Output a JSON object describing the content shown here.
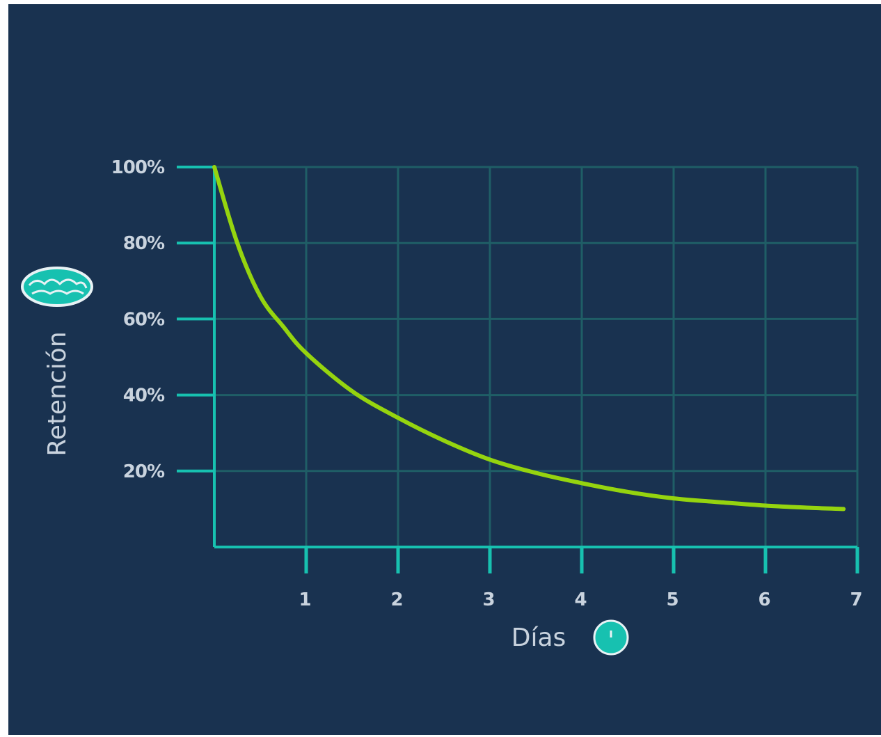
{
  "colors": {
    "background": "#193250",
    "axis": "#17c1b0",
    "grid": "#1f5e66",
    "curve": "#95d40f",
    "text": "#c9d3de"
  },
  "chart_data": {
    "type": "line",
    "title": "",
    "xlabel": "Días",
    "ylabel": "Retención",
    "xlim": [
      0,
      7
    ],
    "ylim": [
      0,
      100
    ],
    "x_ticks": [
      1,
      2,
      3,
      4,
      5,
      6,
      7
    ],
    "x_tick_labels": [
      "1",
      "2",
      "3",
      "4",
      "5",
      "6",
      "7"
    ],
    "y_ticks": [
      20,
      40,
      60,
      80,
      100
    ],
    "y_tick_labels": [
      "20%",
      "40%",
      "60%",
      "80%",
      "100%"
    ],
    "grid": true,
    "series": [
      {
        "x": [
          0,
          0.25,
          0.5,
          0.75,
          1,
          1.5,
          2,
          2.5,
          3,
          3.5,
          4,
          4.5,
          5,
          5.5,
          6,
          6.5,
          6.85
        ],
        "y": [
          100,
          80,
          66,
          58,
          51,
          41,
          34,
          28,
          23,
          19.5,
          16.8,
          14.5,
          12.8,
          11.8,
          10.9,
          10.3,
          10.0
        ]
      }
    ],
    "icons": {
      "ylabel_icon": "brain-icon",
      "xlabel_icon": "clock-icon"
    }
  }
}
